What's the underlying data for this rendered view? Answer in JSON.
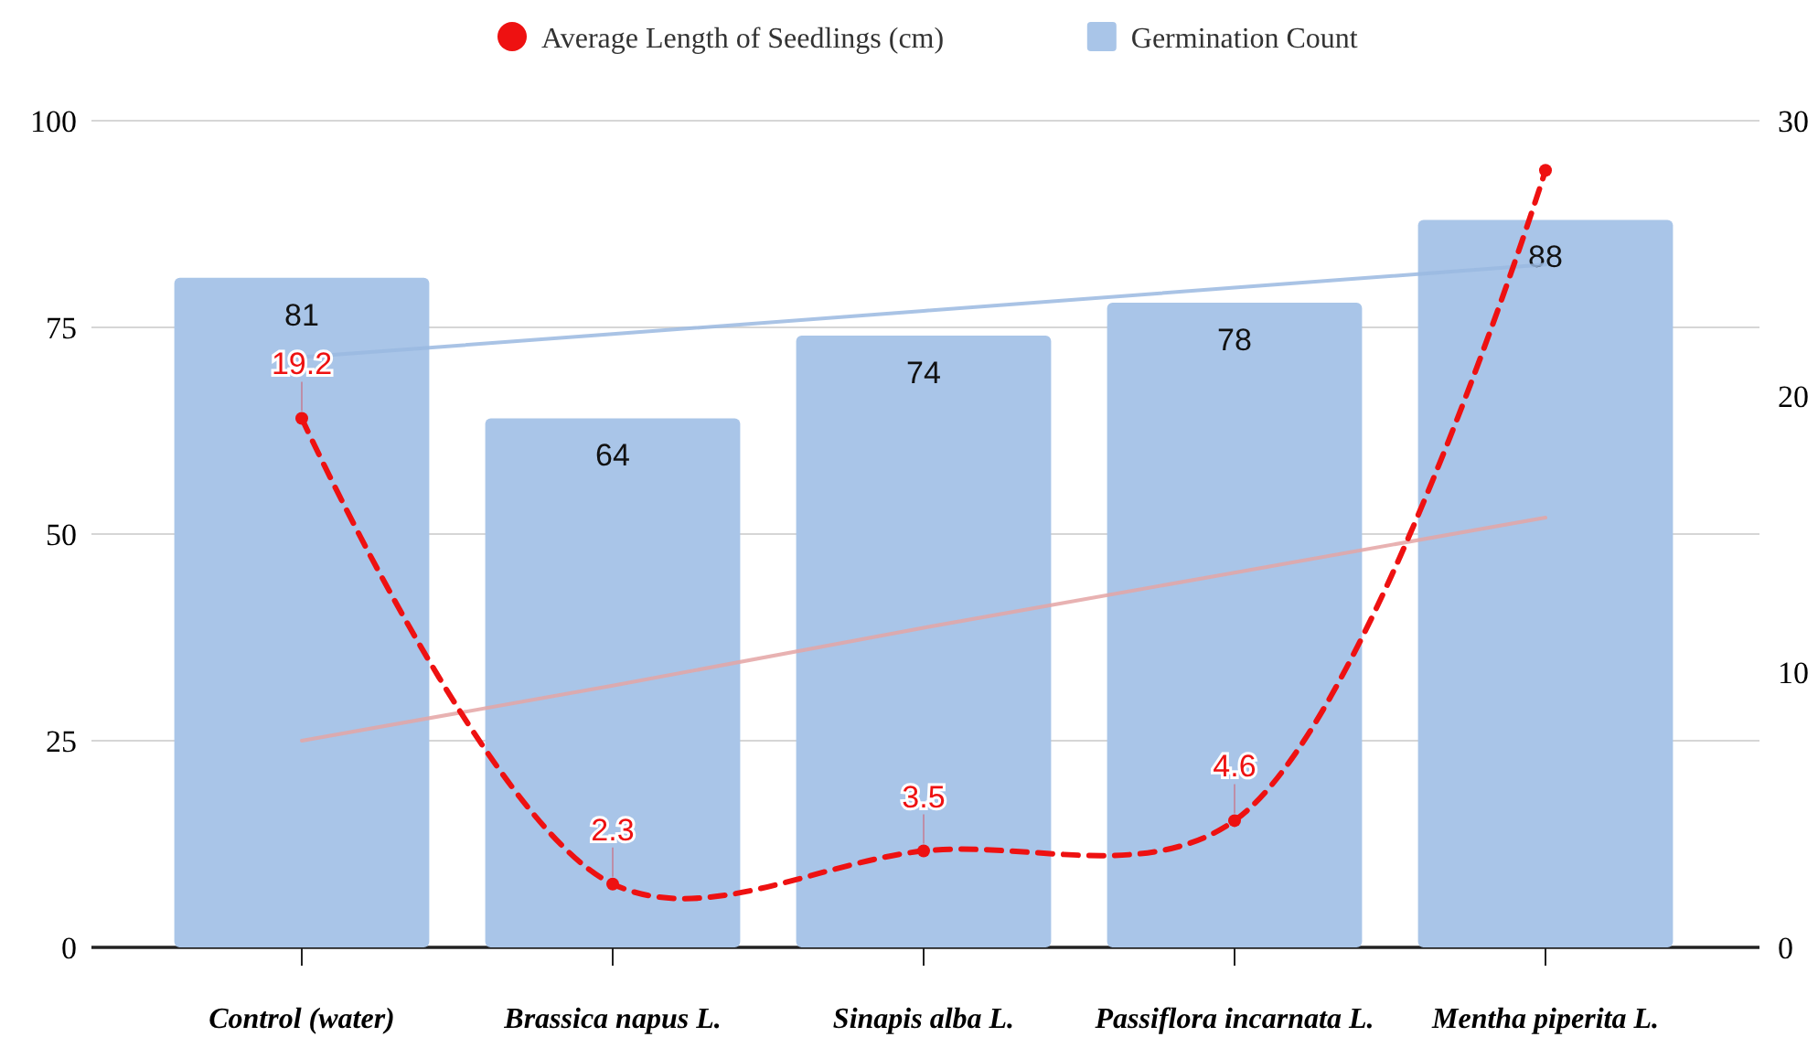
{
  "chart_data": {
    "type": "bar",
    "categories": [
      "Control (water)",
      "Brassica napus L.",
      "Sinapis alba L.",
      "Passiflora incarnata L.",
      "Mentha piperita L."
    ],
    "series": [
      {
        "name": "Germination Count",
        "color": "#a9c5e8",
        "values": [
          81,
          64,
          74,
          78,
          88
        ],
        "data_labels": true
      },
      {
        "name": "Average Length of Seedlings (cm)",
        "type": "line",
        "axis": "y2",
        "color": "#ee1111",
        "values": [
          19.2,
          2.3,
          3.5,
          4.6,
          28.2
        ],
        "value_labels": [
          "19.2",
          "2.3",
          "3.5",
          "4.6",
          null
        ],
        "marker": "circle",
        "line_style": "dashed"
      },
      {
        "type": "line",
        "color": "#9ab8e0",
        "values": [
          71.4,
          74.2,
          77,
          79.8,
          82.6
        ],
        "marker": "none",
        "line_style": "solid"
      },
      {
        "type": "line",
        "axis": "y2",
        "color": "#e4a5a5",
        "values": [
          7.5,
          9.5,
          11.6,
          13.6,
          15.6
        ],
        "marker": "none",
        "line_style": "solid"
      }
    ],
    "ylim": [
      0,
      100
    ],
    "yticks": [
      0,
      25,
      50,
      75,
      100
    ],
    "y2lim": [
      0,
      30
    ],
    "y2ticks": [
      0,
      10,
      20,
      30
    ],
    "grid": "y",
    "legend": "top"
  }
}
